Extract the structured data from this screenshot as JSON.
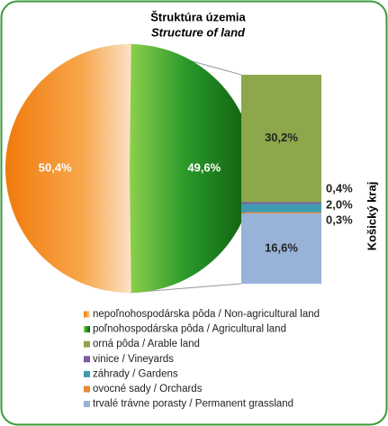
{
  "chart_data": [
    {
      "type": "pie",
      "title": "Štruktúra územia",
      "subtitle": "Structure of land",
      "categories": [
        "nepoľnohospodárska pôda / Non-agricultural land",
        "poľnohospodárska pôda / Agricultural land"
      ],
      "values": [
        50.4,
        49.6
      ],
      "value_labels": [
        "50,4%",
        "49,6%"
      ],
      "colors": [
        "#f07a0c",
        "#168016"
      ]
    },
    {
      "type": "bar",
      "stacked": true,
      "categories": [
        "Košický kraj"
      ],
      "series": [
        {
          "name": "orná pôda / Arable land",
          "color": "#8ca84a",
          "values": [
            30.2
          ],
          "value_labels": [
            "30,2%"
          ]
        },
        {
          "name": "vinice / Vineyards",
          "color": "#7a5aa0",
          "values": [
            0.4
          ],
          "value_labels": [
            "0,4%"
          ]
        },
        {
          "name": "záhrady / Gardens",
          "color": "#3f9bb0",
          "values": [
            2.0
          ],
          "value_labels": [
            "2,0%"
          ]
        },
        {
          "name": "ovocné sady / Orchards",
          "color": "#e8883a",
          "values": [
            0.3
          ],
          "value_labels": [
            "0,3%"
          ]
        },
        {
          "name": "trvalé trávne porasty / Permanent grassland",
          "color": "#98b2d8",
          "values": [
            16.6
          ],
          "value_labels": [
            "16,6%"
          ]
        }
      ]
    }
  ]
}
